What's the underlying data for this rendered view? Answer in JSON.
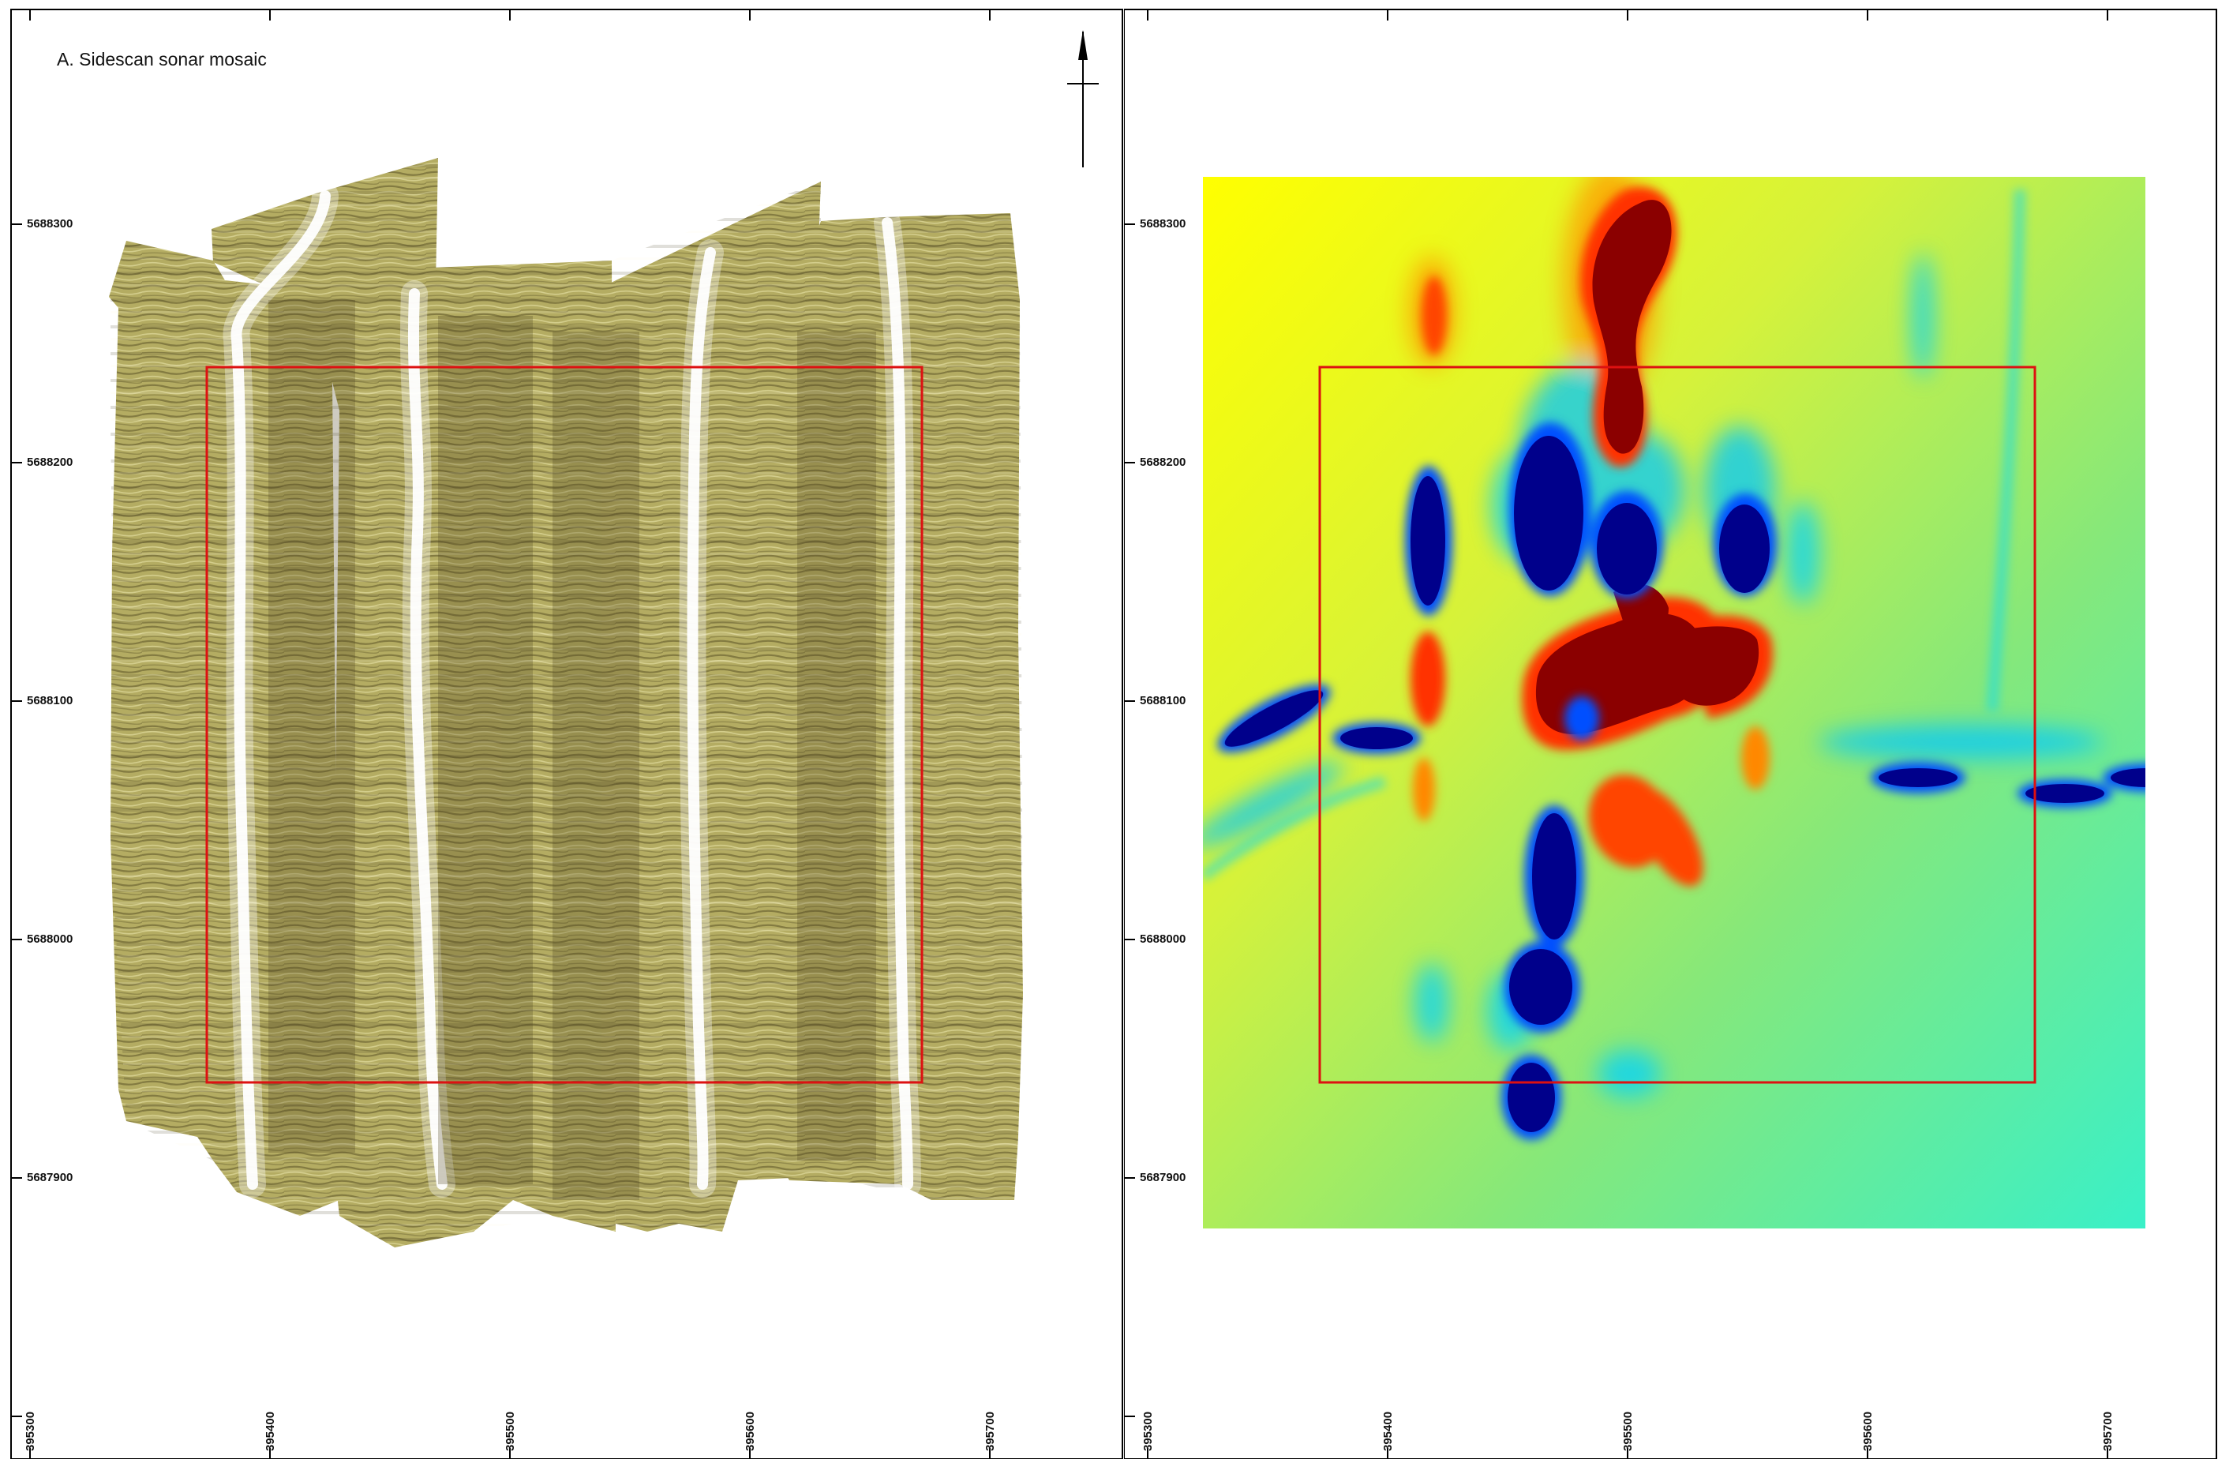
{
  "left_panel": {
    "title": "A. Sidescan sonar mosaic"
  },
  "right_panel": {
    "title": ""
  },
  "axes": {
    "northing_labels": [
      "5688300",
      "5688200",
      "5688100",
      "5688000",
      "5687900"
    ],
    "easting_labels": [
      "395300",
      "395400",
      "395500",
      "395600",
      "395700"
    ]
  },
  "colors": {
    "frame": "#000000",
    "study_box": "#dd1111",
    "sonar_base": "#b4ac62",
    "sonar_dark": "#5a5226",
    "sonar_bright": "#ffffff",
    "anomaly_high": "#8b0000",
    "anomaly_low": "#00008b",
    "anomaly_background": "#9be36e"
  },
  "icons": {
    "north_arrow": "north-arrow-icon"
  }
}
